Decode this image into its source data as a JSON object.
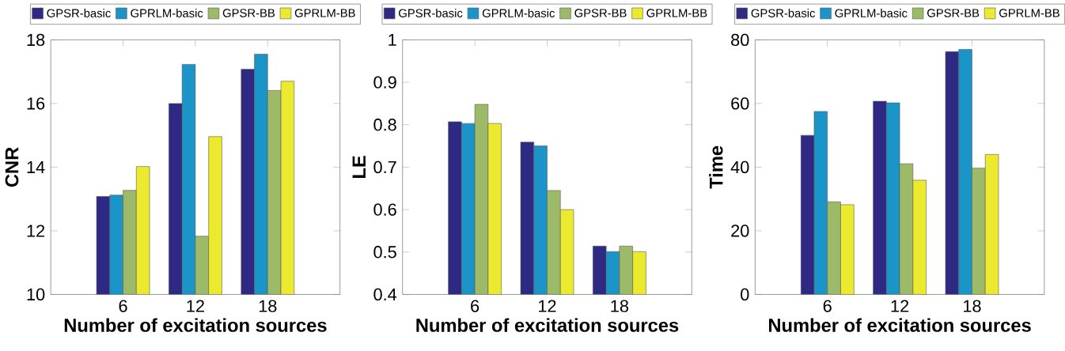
{
  "chart_data": [
    {
      "type": "bar",
      "xlabel": "Number of excitation sources",
      "ylabel": "CNR",
      "x": [
        6,
        12,
        18
      ],
      "xlim": [
        0,
        24
      ],
      "xticks": [
        6,
        12,
        18
      ],
      "ylim": [
        10,
        18
      ],
      "yticks": [
        10,
        12,
        14,
        16,
        18
      ],
      "legend": "top",
      "series": [
        {
          "name": "GPSR-basic",
          "color": "#2e2a84",
          "values": [
            13.08,
            16.0,
            17.08
          ]
        },
        {
          "name": "GPRLM-basic",
          "color": "#1b95c8",
          "values": [
            13.12,
            17.23,
            17.55
          ]
        },
        {
          "name": "GPSR-BB",
          "color": "#9cba68",
          "values": [
            13.27,
            11.83,
            16.41
          ]
        },
        {
          "name": "GPRLM-BB",
          "color": "#ecea2e",
          "values": [
            14.02,
            14.96,
            16.7
          ]
        }
      ]
    },
    {
      "type": "bar",
      "xlabel": "Number of excitation sources",
      "ylabel": "LE",
      "x": [
        6,
        12,
        18
      ],
      "xlim": [
        0,
        24
      ],
      "xticks": [
        6,
        12,
        18
      ],
      "ylim": [
        0.4,
        1
      ],
      "yticks": [
        0.4,
        0.5,
        0.6,
        0.7,
        0.8,
        0.9,
        1
      ],
      "legend": "top",
      "series": [
        {
          "name": "GPSR-basic",
          "color": "#2e2a84",
          "values": [
            0.807,
            0.759,
            0.514
          ]
        },
        {
          "name": "GPRLM-basic",
          "color": "#1b95c8",
          "values": [
            0.803,
            0.75,
            0.501
          ]
        },
        {
          "name": "GPSR-BB",
          "color": "#9cba68",
          "values": [
            0.848,
            0.645,
            0.514
          ]
        },
        {
          "name": "GPRLM-BB",
          "color": "#ecea2e",
          "values": [
            0.803,
            0.6,
            0.501
          ]
        }
      ]
    },
    {
      "type": "bar",
      "xlabel": "Number of excitation sources",
      "ylabel": "Time",
      "x": [
        6,
        12,
        18
      ],
      "xlim": [
        0,
        24
      ],
      "xticks": [
        6,
        12,
        18
      ],
      "ylim": [
        0,
        80
      ],
      "yticks": [
        0,
        20,
        40,
        60,
        80
      ],
      "legend": "top",
      "series": [
        {
          "name": "GPSR-basic",
          "color": "#2e2a84",
          "values": [
            50.0,
            60.7,
            76.3
          ]
        },
        {
          "name": "GPRLM-basic",
          "color": "#1b95c8",
          "values": [
            57.5,
            60.2,
            77.0
          ]
        },
        {
          "name": "GPSR-BB",
          "color": "#9cba68",
          "values": [
            29.1,
            41.1,
            39.7
          ]
        },
        {
          "name": "GPRLM-BB",
          "color": "#ecea2e",
          "values": [
            28.2,
            35.9,
            44.0
          ]
        }
      ]
    }
  ]
}
